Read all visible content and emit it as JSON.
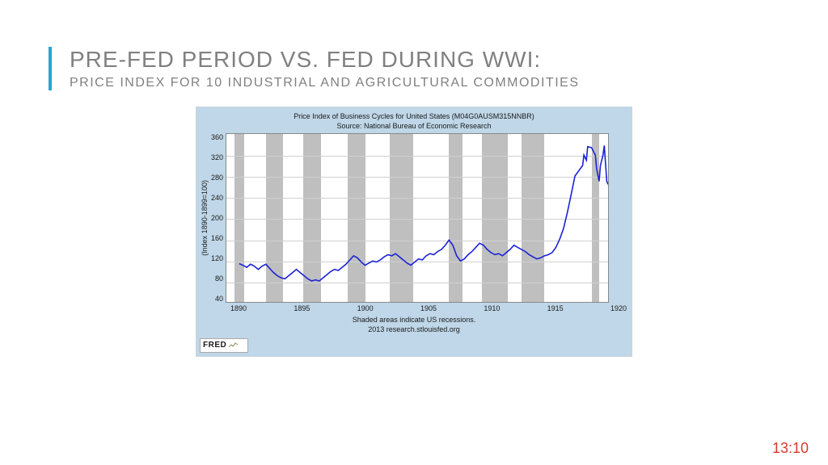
{
  "title": "PRE-FED PERIOD VS. FED DURING WWI:",
  "subtitle": "PRICE INDEX FOR 10 INDUSTRIAL AND AGRICULTURAL COMMODITIES",
  "timestamp": "13:10",
  "chart": {
    "type": "line",
    "header_line1": "Price Index of Business Cycles for United States (M04G0AUSM315NNBR)",
    "header_line2": "Source: National Bureau of Economic Research",
    "footer_line1": "Shaded areas indicate US recessions.",
    "footer_line2": "2013 research.stlouisfed.org",
    "yaxis_label": "(Index 1890-1899=100)",
    "ylim": [
      40,
      360
    ],
    "ytick_step": 40,
    "yticks": [
      360,
      320,
      280,
      240,
      200,
      160,
      120,
      80,
      40
    ],
    "xlim": [
      1890,
      1920
    ],
    "xticks": [
      1890,
      1895,
      1900,
      1905,
      1910,
      1915,
      1920
    ],
    "background_color": "#bfd7e8",
    "plot_background": "#ffffff",
    "grid_color": "#d0d0d0",
    "recession_color": "#bfbfbf",
    "line_color": "#1a22d6",
    "line_width": 1.6,
    "recessions": [
      [
        1890.6,
        1891.4
      ],
      [
        1893.1,
        1894.4
      ],
      [
        1896.0,
        1897.4
      ],
      [
        1899.5,
        1900.9
      ],
      [
        1902.8,
        1904.6
      ],
      [
        1907.4,
        1908.5
      ],
      [
        1910.0,
        1912.0
      ],
      [
        1913.1,
        1914.9
      ],
      [
        1918.6,
        1919.2
      ]
    ],
    "series": [
      [
        1891.0,
        113
      ],
      [
        1891.3,
        110
      ],
      [
        1891.6,
        106
      ],
      [
        1891.9,
        112
      ],
      [
        1892.2,
        108
      ],
      [
        1892.5,
        102
      ],
      [
        1892.8,
        108
      ],
      [
        1893.1,
        112
      ],
      [
        1893.4,
        104
      ],
      [
        1893.7,
        96
      ],
      [
        1894.0,
        90
      ],
      [
        1894.3,
        86
      ],
      [
        1894.6,
        84
      ],
      [
        1894.9,
        90
      ],
      [
        1895.2,
        96
      ],
      [
        1895.5,
        102
      ],
      [
        1895.8,
        96
      ],
      [
        1896.1,
        90
      ],
      [
        1896.4,
        84
      ],
      [
        1896.7,
        80
      ],
      [
        1897.0,
        82
      ],
      [
        1897.3,
        80
      ],
      [
        1897.6,
        86
      ],
      [
        1897.9,
        92
      ],
      [
        1898.2,
        98
      ],
      [
        1898.5,
        102
      ],
      [
        1898.8,
        100
      ],
      [
        1899.1,
        106
      ],
      [
        1899.4,
        112
      ],
      [
        1899.7,
        120
      ],
      [
        1900.0,
        128
      ],
      [
        1900.3,
        124
      ],
      [
        1900.6,
        116
      ],
      [
        1900.9,
        110
      ],
      [
        1901.2,
        114
      ],
      [
        1901.5,
        118
      ],
      [
        1901.8,
        116
      ],
      [
        1902.1,
        120
      ],
      [
        1902.4,
        126
      ],
      [
        1902.7,
        130
      ],
      [
        1903.0,
        128
      ],
      [
        1903.3,
        132
      ],
      [
        1903.6,
        126
      ],
      [
        1903.9,
        120
      ],
      [
        1904.2,
        114
      ],
      [
        1904.5,
        110
      ],
      [
        1904.8,
        116
      ],
      [
        1905.1,
        122
      ],
      [
        1905.4,
        120
      ],
      [
        1905.7,
        128
      ],
      [
        1906.0,
        132
      ],
      [
        1906.3,
        130
      ],
      [
        1906.6,
        136
      ],
      [
        1906.9,
        140
      ],
      [
        1907.2,
        148
      ],
      [
        1907.5,
        158
      ],
      [
        1907.8,
        148
      ],
      [
        1908.1,
        128
      ],
      [
        1908.4,
        118
      ],
      [
        1908.7,
        122
      ],
      [
        1909.0,
        130
      ],
      [
        1909.3,
        136
      ],
      [
        1909.6,
        144
      ],
      [
        1909.9,
        152
      ],
      [
        1910.2,
        148
      ],
      [
        1910.5,
        140
      ],
      [
        1910.8,
        134
      ],
      [
        1911.1,
        130
      ],
      [
        1911.4,
        132
      ],
      [
        1911.7,
        128
      ],
      [
        1912.0,
        134
      ],
      [
        1912.3,
        140
      ],
      [
        1912.6,
        148
      ],
      [
        1912.9,
        144
      ],
      [
        1913.2,
        140
      ],
      [
        1913.5,
        136
      ],
      [
        1913.8,
        130
      ],
      [
        1914.1,
        126
      ],
      [
        1914.4,
        122
      ],
      [
        1914.7,
        124
      ],
      [
        1915.0,
        128
      ],
      [
        1915.3,
        130
      ],
      [
        1915.6,
        134
      ],
      [
        1915.9,
        144
      ],
      [
        1916.2,
        160
      ],
      [
        1916.5,
        180
      ],
      [
        1916.8,
        210
      ],
      [
        1917.1,
        245
      ],
      [
        1917.4,
        280
      ],
      [
        1917.7,
        290
      ],
      [
        1918.0,
        300
      ],
      [
        1918.1,
        320
      ],
      [
        1918.3,
        310
      ],
      [
        1918.4,
        336
      ],
      [
        1918.7,
        334
      ],
      [
        1919.0,
        320
      ],
      [
        1919.1,
        294
      ],
      [
        1919.3,
        270
      ],
      [
        1919.4,
        300
      ],
      [
        1919.6,
        320
      ],
      [
        1919.7,
        338
      ],
      [
        1919.9,
        270
      ],
      [
        1920.0,
        264
      ]
    ],
    "fred_label": "FRED"
  }
}
